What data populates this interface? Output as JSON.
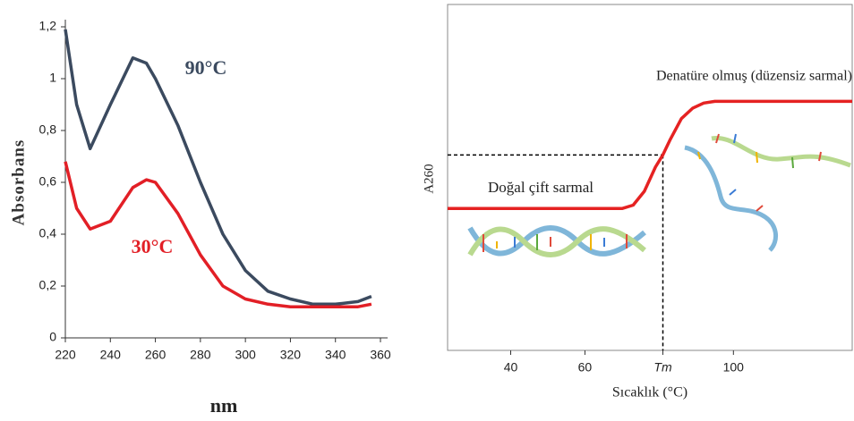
{
  "chart_data": [
    {
      "type": "line",
      "ylabel": "Absorbans",
      "xlabel": "nm",
      "x": [
        220,
        225,
        231,
        240,
        250,
        256,
        260,
        270,
        280,
        290,
        300,
        310,
        320,
        330,
        340,
        350,
        356
      ],
      "series": [
        {
          "name": "90°C",
          "color": "#3b4a5f",
          "values": [
            1.19,
            0.9,
            0.73,
            0.9,
            1.08,
            1.06,
            1.0,
            0.82,
            0.6,
            0.4,
            0.26,
            0.18,
            0.15,
            0.13,
            0.13,
            0.14,
            0.16
          ]
        },
        {
          "name": "30°C",
          "color": "#e21f26",
          "values": [
            0.68,
            0.5,
            0.42,
            0.45,
            0.58,
            0.61,
            0.6,
            0.48,
            0.32,
            0.2,
            0.15,
            0.13,
            0.12,
            0.12,
            0.12,
            0.12,
            0.13
          ]
        }
      ],
      "xlim": [
        220,
        360
      ],
      "xticks": [
        220,
        240,
        260,
        280,
        300,
        320,
        340,
        360
      ],
      "ylim": [
        0,
        1.2
      ],
      "yticks": [
        0,
        {
          "value": 0.2,
          "label": "0,2"
        },
        {
          "value": 0.4,
          "label": "0,4"
        },
        {
          "value": 0.6,
          "label": "0,6"
        },
        {
          "value": 0.8,
          "label": "0,8"
        },
        1,
        {
          "value": 1.2,
          "label": "1,2"
        }
      ],
      "grid": false
    },
    {
      "type": "line",
      "ylabel": "A260",
      "xlabel": "Sıcaklık (°C)",
      "annotations": [
        "Denatüre olmuş (düzensiz sarmal)",
        "Doğal çift sarmal"
      ],
      "x": [
        23,
        30,
        40,
        50,
        60,
        65,
        70,
        73,
        76,
        79,
        81,
        83,
        86,
        89,
        92,
        95,
        100,
        110,
        120,
        132
      ],
      "series": [
        {
          "color": "#e52222",
          "values": [
            0.41,
            0.41,
            0.41,
            0.41,
            0.41,
            0.41,
            0.41,
            0.42,
            0.46,
            0.53,
            0.565,
            0.61,
            0.67,
            0.7,
            0.715,
            0.72,
            0.72,
            0.72,
            0.72,
            0.72
          ]
        }
      ],
      "xlim": [
        23,
        132
      ],
      "xticks": [
        40,
        60,
        {
          "value": 81,
          "label": "Tm"
        },
        100
      ],
      "ylim": [
        0,
        1
      ],
      "yticks": [],
      "grid": false
    }
  ]
}
